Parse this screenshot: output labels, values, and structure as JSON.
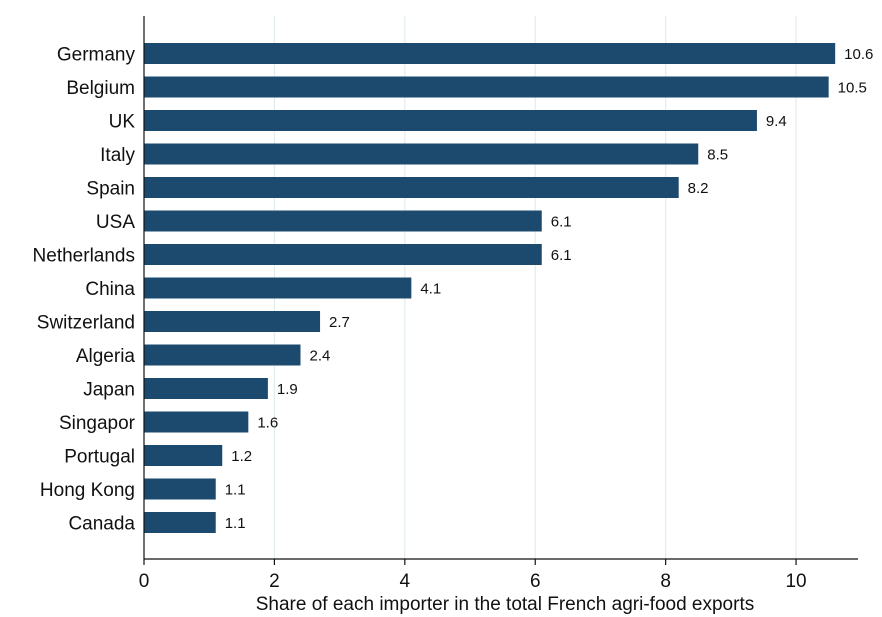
{
  "chart_data": {
    "type": "bar",
    "orientation": "horizontal",
    "categories": [
      "Germany",
      "Belgium",
      "UK",
      "Italy",
      "Spain",
      "USA",
      "Netherlands",
      "China",
      "Switzerland",
      "Algeria",
      "Japan",
      "Singapor",
      "Portugal",
      "Hong Kong",
      "Canada"
    ],
    "values": [
      10.6,
      10.5,
      9.4,
      8.5,
      8.2,
      6.1,
      6.1,
      4.1,
      2.7,
      2.4,
      1.9,
      1.6,
      1.2,
      1.1,
      1.1
    ],
    "value_labels": [
      "10.6",
      "10.5",
      "9.4",
      "8.5",
      "8.2",
      "6.1",
      "6.1",
      "4.1",
      "2.7",
      "2.4",
      "1.9",
      "1.6",
      "1.2",
      "1.1",
      "1.1"
    ],
    "xlabel": "Share of each importer in the total French agri-food exports",
    "ylabel": "",
    "xlim": [
      0,
      10.95
    ],
    "x_ticks": [
      0,
      2,
      4,
      6,
      8,
      10
    ],
    "x_tick_labels": [
      "0",
      "2",
      "4",
      "6",
      "8",
      "10"
    ],
    "grid": "vertical",
    "legend": "none",
    "colors": {
      "bar": "#1c4a6f",
      "grid": "#e3ecec",
      "axis": "#111111",
      "text": "#111111",
      "background": "#ffffff"
    }
  }
}
